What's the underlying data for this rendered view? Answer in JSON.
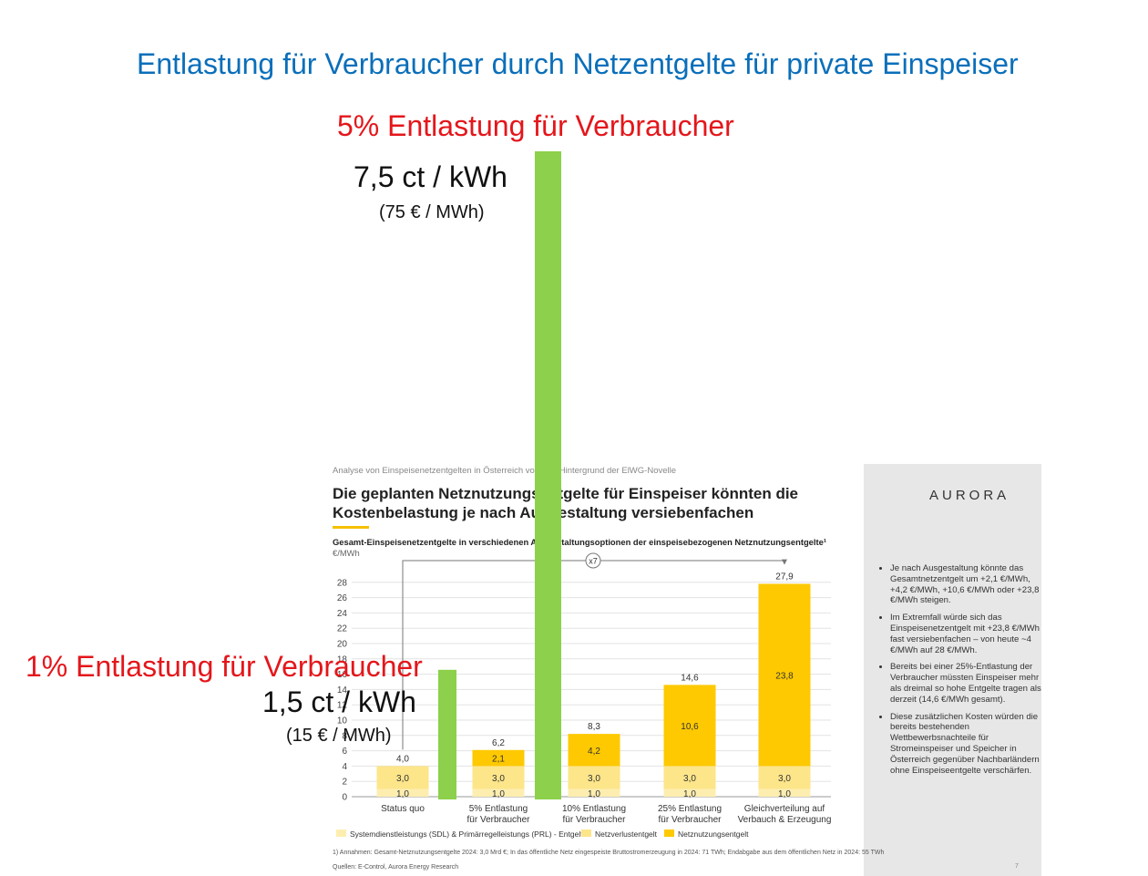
{
  "overlay": {
    "title": "Entlastung für Verbraucher durch Netzentgelte für private Einspeiser",
    "label_5pct": "5% Entlastung für Verbraucher",
    "value_5pct": "7,5 ct / kWh",
    "value_5pct_sub": "(75 € / MWh)",
    "label_1pct": "1% Entlastung für Verbraucher",
    "value_1pct": "1,5 ct / kWh",
    "value_1pct_sub": "(15 € / MWh)",
    "green_bars": [
      {
        "category": "1% Entlastung für Verbraucher",
        "value": 15
      },
      {
        "category": "5% Entlastung für Verbraucher",
        "value": 75
      }
    ],
    "colors": {
      "title": "#0a6fba",
      "highlight": "#e4161b",
      "green": "#8cd04b"
    }
  },
  "slide": {
    "breadcrumb": "Analyse von Einspeisenetzentgelten in Österreich vor dem Hintergrund der ElWG-Novelle",
    "headline_line1": "Die geplanten Netznutzungsentgelte für Einspeiser könnten die",
    "headline_line2": "Kostenbelastung je nach Ausgestaltung versiebenfachen",
    "chart_subtitle": "Gesamt-Einspeisenetzentgelte in verschiedenen Ausgestaltungsoptionen der einspeisebezogenen Netznutzungsentgelte¹",
    "unit": "€/MWh",
    "multiplier": "x7",
    "footnote": "1) Annahmen: Gesamt-Netznutzungsentgelte 2024: 3,0 Mrd €; In das öffentliche Netz eingespeiste Bruttostromerzeugung in 2024: 71 TWh; Endabgabe aus dem öffentlichen Netz in 2024: 55 TWh",
    "sources": "Quellen: E-Control, Aurora Energy Research",
    "logo": "AURORA",
    "page_number": "7",
    "bullets": [
      "Je nach Ausgestaltung könnte das Gesamtnetzentgelt um +2,1 €/MWh, +4,2 €/MWh, +10,6 €/MWh oder +23,8 €/MWh steigen.",
      "Im Extremfall würde sich das Einspeisenetzentgelt mit +23,8 €/MWh fast versiebenfachen – von heute ~4 €/MWh auf 28 €/MWh.",
      "Bereits bei einer 25%-Entlastung der Verbraucher müssten Einspeiser mehr als dreimal so hohe Entgelte tragen als derzeit (14,6 €/MWh gesamt).",
      "Diese zusätzlichen Kosten würden die bereits bestehenden Wettbewerbsnachteile für Stromeinspeiser und Speicher in Österreich gegenüber Nachbarländern ohne Einspeiseentgelte verschärfen."
    ]
  },
  "chart_data": {
    "type": "bar",
    "stacked": true,
    "categories": [
      [
        "Status quo"
      ],
      [
        "5% Entlastung",
        "für Verbraucher"
      ],
      [
        "10% Entlastung",
        "für Verbraucher"
      ],
      [
        "25% Entlastung",
        "für Verbraucher"
      ],
      [
        "Gleichverteilung auf",
        "Verbauch & Erzeugung"
      ]
    ],
    "series": [
      {
        "name": "Systemdienstleistungs (SDL) & Primärregelleistungs (PRL) - Entgelte",
        "color": "#fdeeb0",
        "values": [
          1.0,
          1.0,
          1.0,
          1.0,
          1.0
        ],
        "labels": [
          "1,0",
          "1,0",
          "1,0",
          "1,0",
          "1,0"
        ]
      },
      {
        "name": "Netzverlustentgelt",
        "color": "#fde58a",
        "values": [
          3.0,
          3.0,
          3.0,
          3.0,
          3.0
        ],
        "labels": [
          "3,0",
          "3,0",
          "3,0",
          "3,0",
          "3,0"
        ]
      },
      {
        "name": "Netznutzungsentgelt",
        "color": "#fec900",
        "values": [
          0,
          2.1,
          4.2,
          10.6,
          23.8
        ],
        "labels": [
          "",
          "2,1",
          "4,2",
          "10,6",
          "23,8"
        ]
      }
    ],
    "totals": [
      "4,0",
      "6,2",
      "8,3",
      "14,6",
      "27,9"
    ],
    "yticks": [
      0,
      2,
      4,
      6,
      8,
      10,
      12,
      14,
      16,
      18,
      20,
      22,
      24,
      26,
      28
    ],
    "ylim": [
      0,
      28
    ],
    "ylabel": "€/MWh",
    "legend_position": "bottom"
  }
}
